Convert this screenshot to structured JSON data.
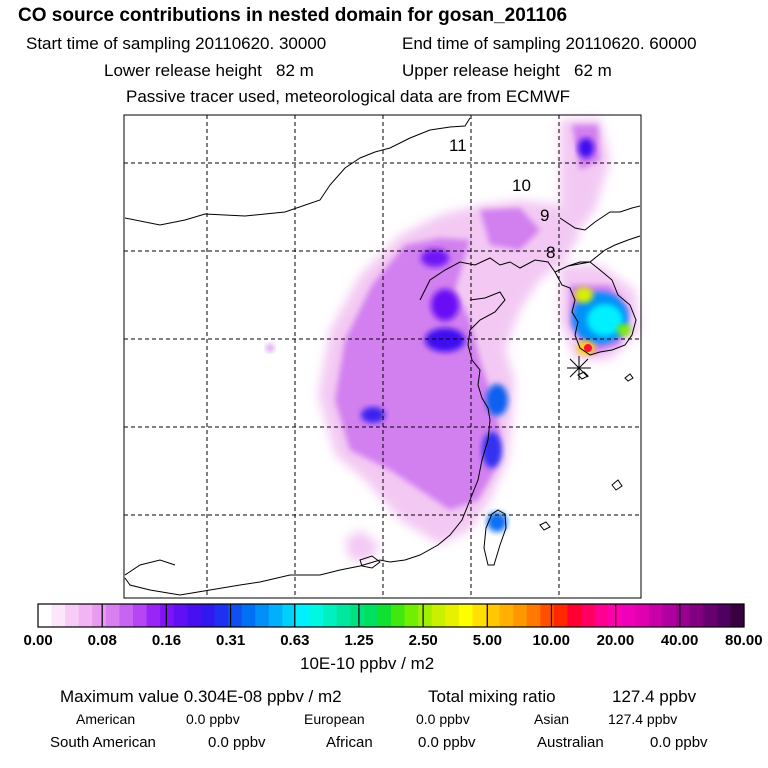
{
  "chart_data": {
    "type": "heatmap",
    "title": "CO  source contributions in nested domain for gosan_201106",
    "start_label": "Start time of sampling",
    "start_value": "20110620. 30000",
    "end_label": "End time of sampling",
    "end_value": "20110620. 60000",
    "lower_label": "Lower release height",
    "lower_value": "82 m",
    "upper_label": "Upper release height",
    "upper_value": "62 m",
    "tracer_note": "Passive tracer used, meteorological data are from ECMWF",
    "contour_labels": [
      "11",
      "10",
      "9",
      "8"
    ],
    "colorbar": {
      "ticks": [
        "0.00",
        "0.08",
        "0.16",
        "0.31",
        "0.63",
        "1.25",
        "2.50",
        "5.00",
        "10.00",
        "20.00",
        "40.00",
        "80.00"
      ],
      "units": "10E-10 ppbv / m2",
      "colors": [
        "#ffffff",
        "#fbe6fb",
        "#f7cdf7",
        "#f2b4f2",
        "#e89bf0",
        "#d97ff0",
        "#c864f2",
        "#b545f5",
        "#9a25f7",
        "#8012f7",
        "#6010f5",
        "#4810f0",
        "#3018ef",
        "#2030f0",
        "#1050f0",
        "#0070f5",
        "#0090f8",
        "#00b0fa",
        "#00d0fc",
        "#00f0ff",
        "#00f8e0",
        "#00f0c0",
        "#00e8a0",
        "#00e080",
        "#00e060",
        "#10e030",
        "#40e810",
        "#70f000",
        "#a0f000",
        "#c8f000",
        "#e8f000",
        "#ffff00",
        "#ffe000",
        "#ffc800",
        "#ffb000",
        "#ff9800",
        "#ff7800",
        "#ff5000",
        "#ff2800",
        "#ff0030",
        "#ff0060",
        "#ff0090",
        "#ff00b0",
        "#f000b8",
        "#e000b0",
        "#c800a8",
        "#b000a0",
        "#980090",
        "#800080",
        "#680070",
        "#500060",
        "#380040"
      ]
    },
    "stats": {
      "max_label": "Maximum value",
      "max_value": "0.304E-08 ppbv / m2",
      "total_label": "Total mixing ratio",
      "total_value": "127.4 ppbv",
      "contributions": [
        {
          "name": "American",
          "value": "0.0 ppbv"
        },
        {
          "name": "European",
          "value": "0.0 ppbv"
        },
        {
          "name": "Asian",
          "value": "127.4 ppbv"
        },
        {
          "name": "South American",
          "value": "0.0 ppbv"
        },
        {
          "name": "African",
          "value": "0.0 ppbv"
        },
        {
          "name": "Australian",
          "value": "0.0 ppbv"
        }
      ]
    }
  }
}
